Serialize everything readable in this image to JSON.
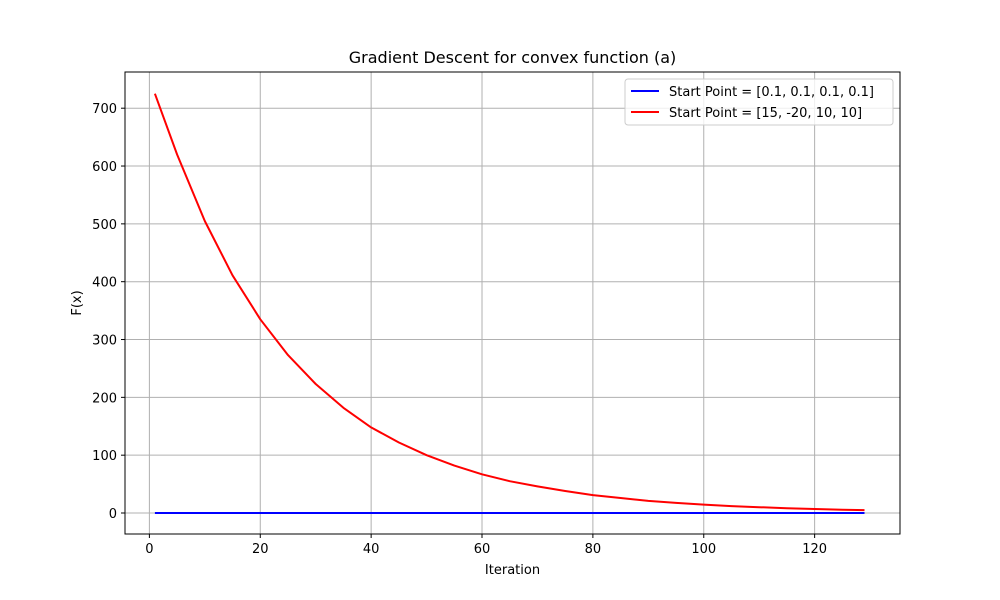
{
  "chart_data": {
    "type": "line",
    "title": "Gradient Descent for convex function (a)",
    "xlabel": "Iteration",
    "ylabel": "F(x)",
    "xlim": [
      -4.4,
      135.4
    ],
    "ylim": [
      -36.3,
      762.6
    ],
    "xticks": [
      0,
      20,
      40,
      60,
      80,
      100,
      120
    ],
    "yticks": [
      0,
      100,
      200,
      300,
      400,
      500,
      600,
      700
    ],
    "grid": true,
    "legend_position": "upper right",
    "series": [
      {
        "name": "Start Point = [0.1, 0.1, 0.1, 0.1]",
        "color": "#0000ff",
        "x": [
          1,
          20,
          40,
          60,
          80,
          100,
          120,
          129
        ],
        "y": [
          0.04,
          0.0,
          0.0,
          0.0,
          0.0,
          0.0,
          0.0,
          0.0
        ]
      },
      {
        "name": "Start Point = [15, -20, 10, 10]",
        "color": "#ff0000",
        "x": [
          1,
          5,
          10,
          15,
          20,
          25,
          30,
          35,
          40,
          45,
          50,
          55,
          60,
          65,
          70,
          75,
          80,
          85,
          90,
          95,
          100,
          105,
          110,
          115,
          120,
          125,
          129
        ],
        "y": [
          725,
          620,
          505,
          411,
          335,
          273,
          223,
          182,
          148,
          122,
          100,
          82,
          67,
          55,
          46,
          38,
          31,
          26,
          21,
          17.5,
          14.5,
          12,
          10,
          8.3,
          6.9,
          5.8,
          5
        ]
      }
    ]
  }
}
